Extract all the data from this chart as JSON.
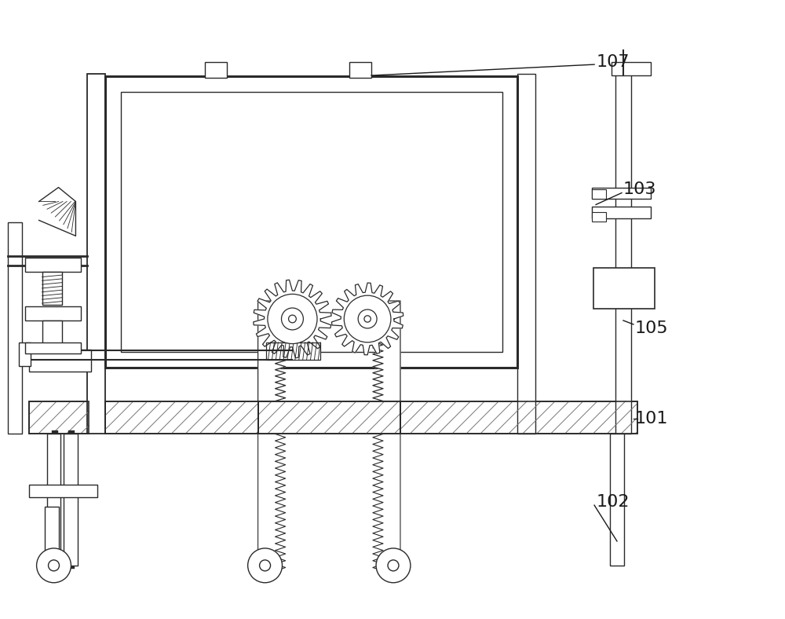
{
  "bg_color": "#ffffff",
  "lc": "#2a2a2a",
  "figsize": [
    10.0,
    7.88
  ],
  "dpi": 100,
  "coord": {
    "xlim": [
      0,
      10
    ],
    "ylim": [
      0,
      7.88
    ]
  }
}
